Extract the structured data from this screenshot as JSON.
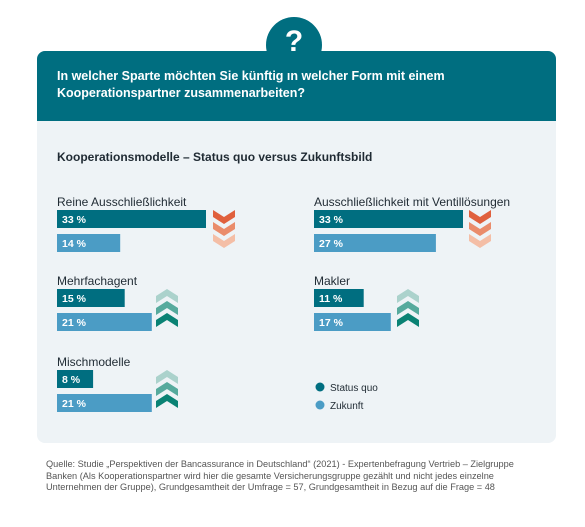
{
  "header": {
    "question": "In welcher Sparte möchten Sie künftig in welcher Form mit einem Kooperationspartner zusammenarbeiten?",
    "badge_glyph": "?"
  },
  "colors": {
    "status_quo": "#006e80",
    "zukunft": "#4b9cc5",
    "header": "#006e80",
    "card_bg": "#eef3f6",
    "arrow_down": [
      "#e0603d",
      "#ea8c6b",
      "#f4bea6"
    ],
    "arrow_up": [
      "#abd2cc",
      "#56aa9d",
      "#0a8274"
    ]
  },
  "chart_data": {
    "type": "bar",
    "title": "Kooperationsmodelle – Status quo versus Zukunftsbild",
    "unit": "%",
    "legend": {
      "position": "bottom-right",
      "items": [
        "Status quo",
        "Zukunft"
      ]
    },
    "series": [
      {
        "name": "Status quo"
      },
      {
        "name": "Zukunft"
      }
    ],
    "groups": [
      {
        "label": "Reine Ausschließlichkeit",
        "values": [
          33,
          14
        ],
        "labels": [
          "33 %",
          "14 %"
        ],
        "trend": "down"
      },
      {
        "label": "Ausschließlichkeit mit Ventillösungen",
        "values": [
          33,
          27
        ],
        "labels": [
          "33 %",
          "27 %"
        ],
        "trend": "down"
      },
      {
        "label": "Mehrfachagent",
        "values": [
          15,
          21
        ],
        "labels": [
          "15 %",
          "21 %"
        ],
        "trend": "up"
      },
      {
        "label": "Makler",
        "values": [
          11,
          17
        ],
        "labels": [
          "11 %",
          "17 %"
        ],
        "trend": "up"
      },
      {
        "label": "Mischmodelle",
        "values": [
          8,
          21
        ],
        "labels": [
          "8 %",
          "21 %"
        ],
        "trend": "up"
      }
    ]
  },
  "footer": {
    "source": "Quelle: Studie „Perspektiven der Bancassurance in Deutschland“ (2021) - Expertenbefragung Vertrieb – Zielgruppe Banken (Als Kooperationspartner wird hier die gesamte Versicherungsgruppe gezählt und nicht jedes einzelne Unternehmen der Gruppe), Grundgesamtheit der Umfrage = 57, Grundgesamtheit in Bezug auf die Frage = 48"
  }
}
